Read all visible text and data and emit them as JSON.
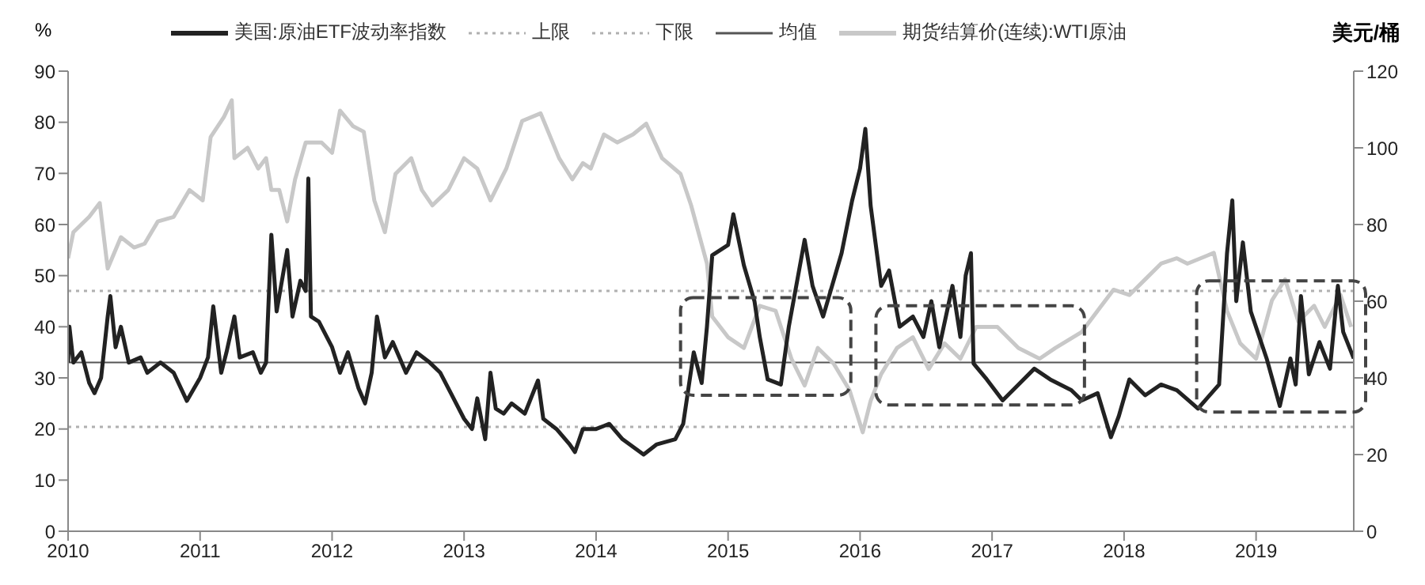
{
  "chart_data": {
    "type": "line",
    "ylabel": "%",
    "y2label": "美元/桶",
    "legend": "top",
    "xlim": [
      2010,
      2019.74
    ],
    "xticks": [
      2010,
      2011,
      2012,
      2013,
      2014,
      2015,
      2016,
      2017,
      2018,
      2019
    ],
    "ylim": [
      0,
      90
    ],
    "yticks": [
      0,
      10,
      20,
      30,
      40,
      50,
      60,
      70,
      80,
      90
    ],
    "y2lim": [
      0,
      120
    ],
    "y2ticks": [
      0,
      20,
      40,
      60,
      80,
      100,
      120
    ],
    "ref_lines": [
      {
        "axis": "y",
        "value": 47,
        "label": "上限",
        "color": "#b0b0b0",
        "line_style": "dotted"
      },
      {
        "axis": "y",
        "value": 20.4,
        "label": "下限",
        "color": "#b0b0b0",
        "line_style": "dotted"
      },
      {
        "axis": "y",
        "value": 33,
        "label": "均值",
        "color": "#555555",
        "line_style": "solid"
      }
    ],
    "series": [
      {
        "name": "期货结算价(连续):WTI原油",
        "color": "#c8c8c8",
        "axis": "y2",
        "x": [
          2010,
          2010.04,
          2010.16,
          2010.24,
          2010.3,
          2010.4,
          2010.5,
          2010.58,
          2010.68,
          2010.8,
          2010.92,
          2011.02,
          2011.08,
          2011.18,
          2011.24,
          2011.26,
          2011.36,
          2011.44,
          2011.5,
          2011.54,
          2011.6,
          2011.66,
          2011.72,
          2011.8,
          2011.92,
          2012,
          2012.06,
          2012.16,
          2012.24,
          2012.32,
          2012.4,
          2012.48,
          2012.6,
          2012.68,
          2012.76,
          2012.88,
          2013,
          2013.1,
          2013.2,
          2013.32,
          2013.44,
          2013.58,
          2013.72,
          2013.82,
          2013.9,
          2013.96,
          2014.06,
          2014.16,
          2014.28,
          2014.38,
          2014.5,
          2014.64,
          2014.72,
          2014.84,
          2014.88,
          2015,
          2015.12,
          2015.24,
          2015.36,
          2015.48,
          2015.58,
          2015.68,
          2015.8,
          2015.92,
          2016.02,
          2016.08,
          2016.16,
          2016.28,
          2016.4,
          2016.52,
          2016.64,
          2016.76,
          2016.88,
          2017.04,
          2017.2,
          2017.36,
          2017.48,
          2017.68,
          2017.8,
          2017.92,
          2018.04,
          2018.16,
          2018.28,
          2018.4,
          2018.48,
          2018.68,
          2018.78,
          2018.88,
          2019,
          2019.12,
          2019.22,
          2019.32,
          2019.44,
          2019.52,
          2019.64,
          2019.72
        ],
        "values": [
          71.2,
          78,
          82,
          85.6,
          68.5,
          76.7,
          74,
          75,
          80.8,
          82,
          89,
          86.3,
          102.8,
          108,
          112.4,
          97.3,
          100,
          94.6,
          97.3,
          89,
          89,
          80.8,
          91.8,
          101.4,
          101.4,
          98.7,
          109.7,
          105.6,
          104.2,
          86.3,
          78,
          93.2,
          97.3,
          89,
          85,
          89,
          97.3,
          94.6,
          86.3,
          94.6,
          107,
          109,
          97.3,
          91.8,
          96,
          94.6,
          103.5,
          101.4,
          103.5,
          106.3,
          97.3,
          93.2,
          85,
          69.8,
          56,
          50.6,
          47.8,
          58.8,
          57.5,
          45,
          38,
          47.8,
          43.7,
          36.8,
          25.8,
          34,
          41,
          47.8,
          50.6,
          42.3,
          49,
          45,
          53.3,
          53.3,
          47.8,
          45,
          47.8,
          52,
          57.5,
          63,
          61.6,
          65.7,
          69.8,
          71.2,
          69.8,
          72.6,
          57.5,
          49,
          45,
          60.2,
          65.7,
          54.7,
          58.8,
          53.3,
          61.6,
          53.3
        ]
      },
      {
        "name": "美国:原油ETF波动率指数",
        "color": "#222222",
        "axis": "y",
        "x": [
          2010,
          2010.01,
          2010.04,
          2010.1,
          2010.16,
          2010.2,
          2010.25,
          2010.3,
          2010.32,
          2010.36,
          2010.4,
          2010.46,
          2010.55,
          2010.6,
          2010.7,
          2010.8,
          2010.9,
          2011,
          2011.06,
          2011.1,
          2011.16,
          2011.2,
          2011.26,
          2011.3,
          2011.4,
          2011.46,
          2011.5,
          2011.54,
          2011.58,
          2011.62,
          2011.66,
          2011.7,
          2011.76,
          2011.8,
          2011.82,
          2011.84,
          2011.9,
          2012,
          2012.06,
          2012.12,
          2012.2,
          2012.25,
          2012.3,
          2012.34,
          2012.4,
          2012.46,
          2012.56,
          2012.64,
          2012.74,
          2012.82,
          2012.9,
          2013,
          2013.06,
          2013.1,
          2013.16,
          2013.2,
          2013.24,
          2013.3,
          2013.36,
          2013.46,
          2013.56,
          2013.6,
          2013.7,
          2013.8,
          2013.84,
          2013.9,
          2014,
          2014.1,
          2014.2,
          2014.36,
          2014.46,
          2014.6,
          2014.66,
          2014.7,
          2014.74,
          2014.8,
          2014.84,
          2014.88,
          2015,
          2015.04,
          2015.12,
          2015.2,
          2015.24,
          2015.3,
          2015.4,
          2015.46,
          2015.58,
          2015.64,
          2015.72,
          2015.86,
          2015.94,
          2016,
          2016.04,
          2016.08,
          2016.16,
          2016.22,
          2016.3,
          2016.4,
          2016.48,
          2016.54,
          2016.6,
          2016.7,
          2016.76,
          2016.8,
          2016.84,
          2016.86,
          2016.96,
          2017.08,
          2017.2,
          2017.32,
          2017.44,
          2017.6,
          2017.68,
          2017.8,
          2017.9,
          2017.96,
          2018.04,
          2018.16,
          2018.28,
          2018.4,
          2018.56,
          2018.72,
          2018.78,
          2018.82,
          2018.85,
          2018.9,
          2018.96,
          2019.08,
          2019.18,
          2019.26,
          2019.3,
          2019.34,
          2019.4,
          2019.48,
          2019.56,
          2019.62,
          2019.66,
          2019.74
        ],
        "values": [
          33,
          40,
          33,
          35,
          29,
          27,
          30,
          42,
          46,
          36,
          40,
          33,
          34,
          31,
          33,
          31,
          25.5,
          30,
          34,
          44,
          31,
          35,
          42,
          34,
          35,
          31,
          33,
          58,
          43,
          49,
          55,
          42,
          49,
          47,
          69,
          42,
          41,
          36,
          31,
          35,
          28,
          25,
          31,
          42,
          34,
          37,
          31,
          35,
          33,
          31,
          27,
          22,
          20,
          26,
          18,
          31,
          24,
          23,
          25,
          23,
          29.5,
          22,
          20,
          17,
          15.5,
          20,
          20,
          21,
          18,
          15,
          17,
          18,
          21,
          28,
          35,
          29,
          40,
          54,
          56,
          62,
          52,
          45,
          38,
          29.7,
          28.7,
          40,
          57,
          48,
          42,
          54.4,
          64.7,
          71,
          78.7,
          63.7,
          48,
          51,
          40,
          42,
          38,
          45,
          36,
          48,
          38,
          50,
          54.4,
          32.8,
          29.7,
          25.6,
          28.7,
          31.8,
          29.7,
          27.6,
          25.6,
          27,
          18.4,
          22.5,
          29.7,
          26.6,
          28.7,
          27.6,
          24,
          28.7,
          54.4,
          64.7,
          45,
          56.5,
          43,
          33.8,
          24.5,
          33.8,
          28.7,
          46,
          30.7,
          37,
          31.8,
          48,
          39,
          33.8
        ]
      }
    ]
  }
}
